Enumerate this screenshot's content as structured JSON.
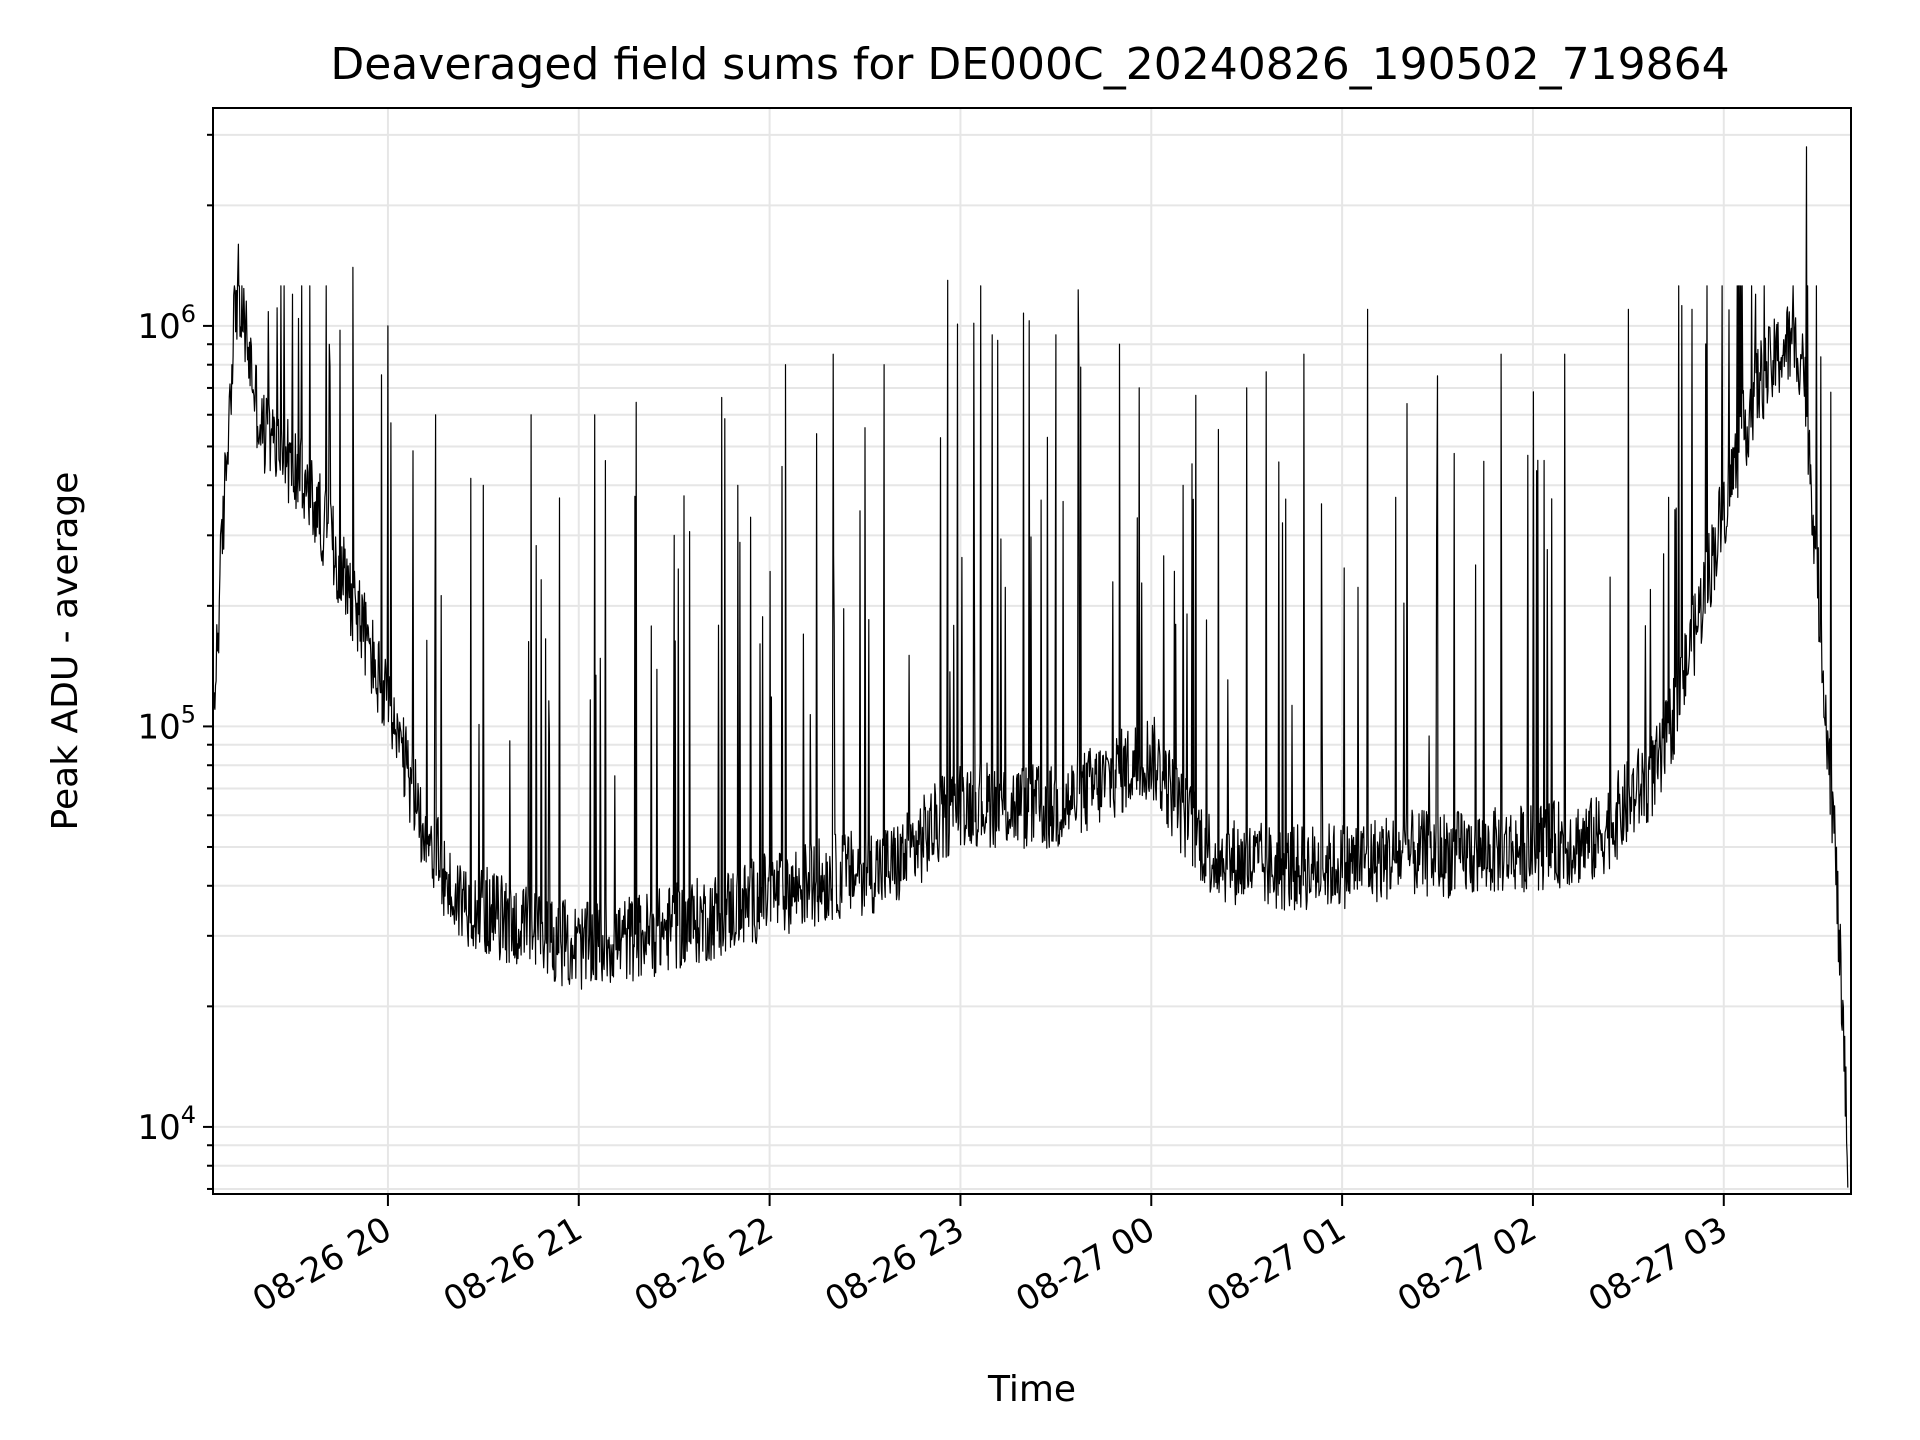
{
  "chart_data": {
    "type": "line",
    "title": "Deaveraged field sums for DE000C_20240826_190502_719864",
    "xlabel": "Time",
    "ylabel": "Peak ADU - average",
    "x_range": [
      "2024-08-26 19:05",
      "2024-08-27 03:40"
    ],
    "ylim": [
      6800,
      3500000
    ],
    "yscale": "log",
    "grid": true,
    "x_ticks": [
      "08-26 20",
      "08-26 21",
      "08-26 22",
      "08-26 23",
      "08-27 00",
      "08-27 01",
      "08-27 02",
      "08-27 03"
    ],
    "y_ticks": [
      {
        "base": "10",
        "exp": "4",
        "value": 10000
      },
      {
        "base": "10",
        "exp": "5",
        "value": 100000
      },
      {
        "base": "10",
        "exp": "6",
        "value": 1000000
      }
    ],
    "line_color": "#000000",
    "series": [
      {
        "baseline": [
          {
            "x": "2024-08-26 19:05",
            "y": 100000
          },
          {
            "x": "2024-08-26 19:08",
            "y": 300000
          },
          {
            "x": "2024-08-26 19:12",
            "y": 1200000
          },
          {
            "x": "2024-08-26 19:15",
            "y": 1000000
          },
          {
            "x": "2024-08-26 19:20",
            "y": 550000
          },
          {
            "x": "2024-08-26 19:30",
            "y": 450000
          },
          {
            "x": "2024-08-26 19:40",
            "y": 320000
          },
          {
            "x": "2024-08-26 19:50",
            "y": 200000
          },
          {
            "x": "2024-08-26 20:00",
            "y": 110000
          },
          {
            "x": "2024-08-26 20:10",
            "y": 60000
          },
          {
            "x": "2024-08-26 20:20",
            "y": 38000
          },
          {
            "x": "2024-08-26 20:40",
            "y": 32000
          },
          {
            "x": "2024-08-26 21:00",
            "y": 28000
          },
          {
            "x": "2024-08-26 21:20",
            "y": 30000
          },
          {
            "x": "2024-08-26 21:40",
            "y": 33000
          },
          {
            "x": "2024-08-26 22:00",
            "y": 38000
          },
          {
            "x": "2024-08-26 22:20",
            "y": 42000
          },
          {
            "x": "2024-08-26 22:40",
            "y": 45000
          },
          {
            "x": "2024-08-26 23:00",
            "y": 65000
          },
          {
            "x": "2024-08-26 23:30",
            "y": 62000
          },
          {
            "x": "2024-08-27 00:00",
            "y": 85000
          },
          {
            "x": "2024-08-27 00:10",
            "y": 60000
          },
          {
            "x": "2024-08-27 00:20",
            "y": 47000
          },
          {
            "x": "2024-08-27 00:40",
            "y": 44000
          },
          {
            "x": "2024-08-27 01:00",
            "y": 45000
          },
          {
            "x": "2024-08-27 01:20",
            "y": 48000
          },
          {
            "x": "2024-08-27 01:40",
            "y": 48000
          },
          {
            "x": "2024-08-27 02:00",
            "y": 50000
          },
          {
            "x": "2024-08-27 02:20",
            "y": 52000
          },
          {
            "x": "2024-08-27 02:40",
            "y": 80000
          },
          {
            "x": "2024-08-27 02:50",
            "y": 160000
          },
          {
            "x": "2024-08-27 03:00",
            "y": 350000
          },
          {
            "x": "2024-08-27 03:10",
            "y": 700000
          },
          {
            "x": "2024-08-27 03:20",
            "y": 900000
          },
          {
            "x": "2024-08-27 03:25",
            "y": 850000
          },
          {
            "x": "2024-08-27 03:30",
            "y": 200000
          },
          {
            "x": "2024-08-27 03:35",
            "y": 50000
          },
          {
            "x": "2024-08-27 03:39",
            "y": 9000
          }
        ],
        "peaks": [
          {
            "x": "2024-08-26 19:13",
            "y": 1600000
          },
          {
            "x": "2024-08-26 19:30",
            "y": 1200000
          },
          {
            "x": "2024-08-26 19:49",
            "y": 1400000
          },
          {
            "x": "2024-08-26 20:00",
            "y": 1000000
          },
          {
            "x": "2024-08-26 20:15",
            "y": 600000
          },
          {
            "x": "2024-08-26 20:30",
            "y": 400000
          },
          {
            "x": "2024-08-26 20:45",
            "y": 600000
          },
          {
            "x": "2024-08-26 21:05",
            "y": 600000
          },
          {
            "x": "2024-08-26 21:30",
            "y": 300000
          },
          {
            "x": "2024-08-26 21:50",
            "y": 400000
          },
          {
            "x": "2024-08-26 22:05",
            "y": 800000
          },
          {
            "x": "2024-08-26 22:20",
            "y": 850000
          },
          {
            "x": "2024-08-26 22:36",
            "y": 800000
          },
          {
            "x": "2024-08-26 22:56",
            "y": 1300000
          },
          {
            "x": "2024-08-26 23:10",
            "y": 950000
          },
          {
            "x": "2024-08-26 23:30",
            "y": 950000
          },
          {
            "x": "2024-08-26 23:50",
            "y": 900000
          },
          {
            "x": "2024-08-27 00:10",
            "y": 400000
          },
          {
            "x": "2024-08-27 00:30",
            "y": 700000
          },
          {
            "x": "2024-08-27 00:48",
            "y": 850000
          },
          {
            "x": "2024-08-27 01:08",
            "y": 1100000
          },
          {
            "x": "2024-08-27 01:30",
            "y": 750000
          },
          {
            "x": "2024-08-27 01:50",
            "y": 850000
          },
          {
            "x": "2024-08-27 02:10",
            "y": 850000
          },
          {
            "x": "2024-08-27 02:30",
            "y": 1100000
          },
          {
            "x": "2024-08-27 02:50",
            "y": 1100000
          },
          {
            "x": "2024-08-27 03:10",
            "y": 1200000
          },
          {
            "x": "2024-08-27 03:26",
            "y": 2800000
          }
        ]
      }
    ]
  }
}
